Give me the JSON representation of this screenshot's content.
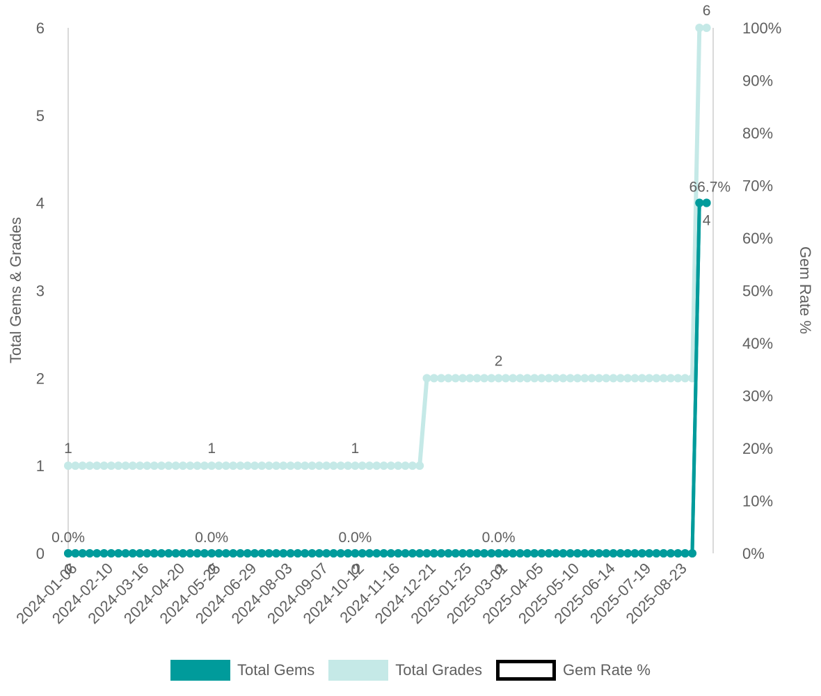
{
  "chart_data": {
    "type": "line",
    "x_start": "2024-01-06",
    "x_step_days": 7,
    "tick_labels": [
      "2024-01-06",
      "2024-02-10",
      "2024-03-16",
      "2024-04-20",
      "2024-05-25",
      "2024-06-29",
      "2024-08-03",
      "2024-09-07",
      "2024-10-12",
      "2024-11-16",
      "2024-12-21",
      "2025-01-25",
      "2025-03-01",
      "2025-04-05",
      "2025-05-10",
      "2025-06-14",
      "2025-07-19",
      "2025-08-23"
    ],
    "y_left": {
      "label": "Total Gems & Grades",
      "ylim": [
        0,
        6
      ],
      "ticks": [
        "0",
        "1",
        "2",
        "3",
        "4",
        "5",
        "6"
      ]
    },
    "y_right": {
      "label": "Gem Rate %",
      "ylim": [
        0,
        100
      ],
      "ticks": [
        "0%",
        "10%",
        "20%",
        "30%",
        "40%",
        "50%",
        "60%",
        "70%",
        "80%",
        "90%",
        "100%"
      ]
    },
    "grid": false,
    "legend_position": "bottom",
    "series": [
      {
        "name": "Total Gems",
        "color": "#009b9b",
        "axis": "left",
        "segments": [
          {
            "from_index": 0,
            "to_index": 87,
            "value": 0
          },
          {
            "from_index": 88,
            "to_index": 89,
            "value": 4
          }
        ]
      },
      {
        "name": "Total Grades",
        "color": "#c5e9e7",
        "axis": "left",
        "segments": [
          {
            "from_index": 0,
            "to_index": 49,
            "value": 1
          },
          {
            "from_index": 50,
            "to_index": 87,
            "value": 2
          },
          {
            "from_index": 88,
            "to_index": 89,
            "value": 6
          }
        ]
      },
      {
        "name": "Gem Rate %",
        "color": "#000000",
        "axis": "right",
        "segments": [
          {
            "from_index": 0,
            "to_index": 87,
            "value": 0
          },
          {
            "from_index": 88,
            "to_index": 89,
            "value": 66.7
          }
        ]
      }
    ],
    "annotations": [
      {
        "series": "Total Grades",
        "index": 0,
        "text": "1"
      },
      {
        "series": "Total Grades",
        "index": 20,
        "text": "1"
      },
      {
        "series": "Total Grades",
        "index": 40,
        "text": "1"
      },
      {
        "series": "Total Grades",
        "index": 60,
        "text": "2"
      },
      {
        "series": "Total Grades",
        "index": 89,
        "text": "6"
      },
      {
        "series": "Gem Rate %",
        "index": 0,
        "text": "0.0%"
      },
      {
        "series": "Gem Rate %",
        "index": 20,
        "text": "0.0%"
      },
      {
        "series": "Gem Rate %",
        "index": 40,
        "text": "0.0%"
      },
      {
        "series": "Gem Rate %",
        "index": 60,
        "text": "0.0%"
      },
      {
        "series": "Gem Rate %",
        "index": 88,
        "text": "66.7%"
      },
      {
        "series": "Total Gems",
        "index": 0,
        "text": "0"
      },
      {
        "series": "Total Gems",
        "index": 20,
        "text": "0"
      },
      {
        "series": "Total Gems",
        "index": 40,
        "text": "0"
      },
      {
        "series": "Total Gems",
        "index": 60,
        "text": "0"
      },
      {
        "series": "Total Gems",
        "index": 89,
        "text": "4"
      }
    ]
  }
}
